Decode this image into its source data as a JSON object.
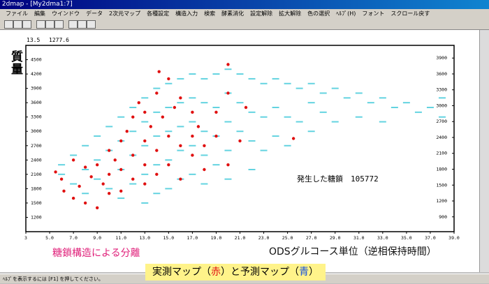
{
  "window_title": "2dmap - [My2dma1:7]",
  "menu": [
    "ファイル",
    "編集",
    "ウインドウ",
    "データ",
    "2次元マップ",
    "各種設定",
    "構造入力",
    "検索",
    "酵素消化",
    "設定解除",
    "拡大解除",
    "色の選択",
    "ﾍﾙﾌﾟ(H)",
    "フォント",
    "スクロール戻す"
  ],
  "status": "ﾍﾙﾌﾟを表示するには [F1] を押してください。",
  "captions": {
    "left": "糖鎖構造による分離",
    "right": "ODSグルコース単位（逆相保持時間）",
    "bottom": [
      "実測マップ（",
      "赤",
      "）と予測マップ（",
      "青",
      "）"
    ]
  },
  "chart_data": {
    "type": "scatter",
    "y_label": "質量",
    "corner_left": "13.5",
    "corner_right": "1277.6",
    "annotation": "発生した糖鎖　105772",
    "xlim": [
      3,
      39
    ],
    "ylim": [
      900,
      4800
    ],
    "y2lim": [
      620,
      4140
    ],
    "xticks": [
      3,
      {
        "value": 5,
        "label": "5.0"
      },
      {
        "value": 7,
        "label": "7.0"
      },
      {
        "value": 9,
        "label": "9.0"
      },
      {
        "value": 11,
        "label": "11.0"
      },
      {
        "value": 13,
        "label": "13.0"
      },
      {
        "value": 15,
        "label": "15.0"
      },
      {
        "value": 17,
        "label": "17.0"
      },
      {
        "value": 19,
        "label": "19.0"
      },
      {
        "value": 21,
        "label": "21.0"
      },
      {
        "value": 23,
        "label": "23.0"
      },
      {
        "value": 25,
        "label": "25.0"
      },
      {
        "value": 27,
        "label": "27.0"
      },
      {
        "value": 29,
        "label": "29.0"
      },
      {
        "value": 31,
        "label": "31.0"
      },
      {
        "value": 33,
        "label": "33.0"
      },
      {
        "value": 35,
        "label": "35.0"
      },
      {
        "value": 37,
        "label": "37.0"
      },
      {
        "value": 39,
        "label": "39.0"
      }
    ],
    "yticks": [
      1200,
      1500,
      1800,
      2100,
      2400,
      2700,
      3000,
      3300,
      3600,
      3900,
      4200,
      4500
    ],
    "y2ticks": [
      900,
      1200,
      1500,
      1800,
      2100,
      2400,
      2700,
      3000,
      3300,
      3600,
      3900
    ],
    "series": [
      {
        "color": "#3cc8d8",
        "x": [
          6,
          6,
          7,
          7,
          8,
          8,
          8,
          9,
          9,
          9,
          10,
          10,
          10,
          11,
          11,
          11,
          11,
          12,
          12,
          12,
          12,
          13,
          13,
          13,
          13,
          13,
          14,
          14,
          14,
          14,
          14,
          15,
          15,
          15,
          15,
          15,
          16,
          16,
          16,
          16,
          16,
          17,
          17,
          17,
          17,
          17,
          18,
          18,
          18,
          18,
          18,
          19,
          19,
          19,
          19,
          20,
          20,
          20,
          20,
          20,
          21,
          21,
          21,
          22,
          22,
          22,
          22,
          23,
          23,
          23,
          24,
          24,
          24,
          25,
          25,
          25,
          26,
          26,
          27,
          27,
          27,
          28,
          28,
          29,
          29,
          30,
          31,
          31,
          32,
          33,
          33,
          34,
          35,
          36,
          37,
          38,
          38
        ],
        "values": [
          2300,
          2100,
          2500,
          1900,
          2700,
          2200,
          1700,
          2900,
          2400,
          2000,
          3100,
          2600,
          1800,
          3300,
          2800,
          2200,
          1600,
          3500,
          3000,
          2500,
          1900,
          3700,
          3200,
          2700,
          2100,
          1500,
          3900,
          3400,
          2900,
          2300,
          1700,
          4000,
          3500,
          3000,
          2400,
          1800,
          4100,
          3600,
          3100,
          2600,
          2000,
          4200,
          3700,
          3200,
          2700,
          2100,
          4100,
          3600,
          3000,
          2500,
          1900,
          4200,
          3500,
          2900,
          2300,
          4300,
          3800,
          3200,
          2600,
          2000,
          4200,
          3600,
          3000,
          4100,
          3400,
          2800,
          2200,
          4000,
          3300,
          2600,
          4100,
          3500,
          2900,
          4000,
          3300,
          2700,
          3900,
          3200,
          4000,
          3600,
          3000,
          3800,
          3400,
          3900,
          3200,
          3700,
          3800,
          3300,
          3600,
          3700,
          3200,
          3500,
          3600,
          3400,
          3500,
          3300,
          3700
        ]
      },
      {
        "color": "#e01010",
        "x": [
          5.5,
          6,
          6.2,
          7,
          7,
          7.5,
          8,
          8,
          8.5,
          9,
          9,
          9.5,
          10,
          10,
          10,
          10.5,
          11,
          11,
          11,
          11.5,
          12,
          12,
          12,
          12.5,
          13,
          13,
          13,
          13,
          13.5,
          14,
          14,
          14,
          14.2,
          14.5,
          15,
          15,
          15,
          15.5,
          16,
          16,
          16,
          17,
          17,
          17,
          17.5,
          18,
          18,
          19,
          19,
          20,
          20,
          20,
          21,
          21.5,
          25.5
        ],
        "values": [
          2150,
          2000,
          1750,
          2400,
          1600,
          1850,
          2250,
          1500,
          2050,
          2300,
          1400,
          1900,
          2600,
          2100,
          1700,
          2400,
          2800,
          2200,
          1750,
          3000,
          3300,
          2500,
          2000,
          3600,
          3400,
          2800,
          2300,
          1900,
          3100,
          3800,
          2600,
          2100,
          4250,
          3300,
          4100,
          2900,
          2300,
          3500,
          3700,
          2700,
          2000,
          3400,
          2900,
          2500,
          3100,
          2700,
          2200,
          3400,
          2900,
          4400,
          3800,
          2300,
          2800,
          3500,
          2850
        ]
      }
    ]
  }
}
